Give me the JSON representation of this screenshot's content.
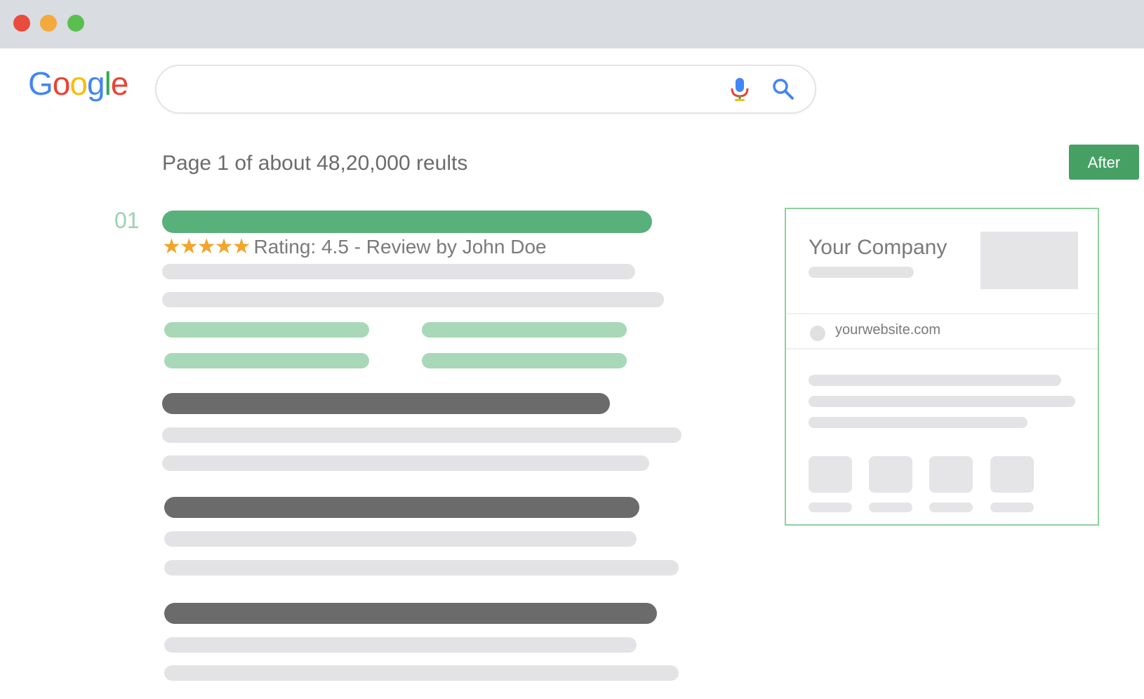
{
  "window": {
    "controls": {
      "close_color": "#e94b3c",
      "minimize_color": "#f4a93d",
      "maximize_color": "#5bbf4f"
    }
  },
  "header": {
    "logo": [
      "G",
      "o",
      "o",
      "g",
      "l",
      "e"
    ],
    "logo_colors": [
      "#4285f4",
      "#ea4335",
      "#fbbc05",
      "#4285f4",
      "#34a853",
      "#ea4335"
    ],
    "search": {
      "value": "",
      "placeholder": ""
    },
    "mic_icon": "microphone-icon",
    "search_icon": "magnifier-icon"
  },
  "results": {
    "count_text": "Page 1 of about 48,20,000 reults",
    "toggle_label": "After",
    "first": {
      "rank": "01",
      "stars": "★★★★★",
      "rating_text": "Rating: 4.5 - Review by John Doe"
    }
  },
  "knowledge_panel": {
    "company": "Your Company",
    "website": "yourwebsite.com"
  },
  "colors": {
    "accent_green": "#46a064",
    "title_green": "#58b07a",
    "placeholder_gray": "#e3e3e6"
  }
}
